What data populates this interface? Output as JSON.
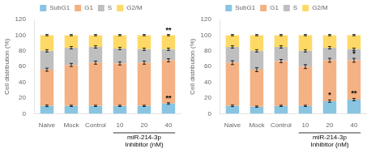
{
  "chart_data": [
    {
      "type": "bar",
      "stacked": true,
      "categories": [
        "Naive",
        "Mock",
        "Control",
        "10",
        "20",
        "40"
      ],
      "series": [
        {
          "name": "SubG1",
          "color": "#89c4e0",
          "values": [
            10,
            10,
            10,
            10,
            10,
            13
          ],
          "errors": [
            1.0,
            0.8,
            0.8,
            0.8,
            0.8,
            1.0
          ]
        },
        {
          "name": "G1",
          "color": "#f4b183",
          "values": [
            46,
            52,
            55,
            54,
            55,
            55
          ],
          "errors": [
            2.0,
            2.0,
            2.0,
            2.0,
            2.0,
            2.0
          ]
        },
        {
          "name": "S",
          "color": "#bfbfbf",
          "values": [
            24,
            22,
            20,
            19,
            17,
            14
          ],
          "errors": [
            1.5,
            1.5,
            1.5,
            1.5,
            1.5,
            1.5
          ]
        },
        {
          "name": "G2/M",
          "color": "#ffd966",
          "values": [
            20,
            16,
            15,
            17,
            18,
            18
          ],
          "errors": [
            0.8,
            0.8,
            0.8,
            0.8,
            0.8,
            0.8
          ]
        }
      ],
      "ylabel": "Cell distribution (%)",
      "ylim": [
        0,
        120
      ],
      "yticks": [
        0,
        20,
        40,
        60,
        80,
        100,
        120
      ],
      "grid": false,
      "legend": "top",
      "bracket": {
        "from": "10",
        "to": "40",
        "text": [
          "miR-214-3p",
          "Inhibitor (nM)"
        ]
      },
      "annotations": [
        {
          "text": "**",
          "category": "40",
          "series": "SubG1"
        },
        {
          "text": "**",
          "category": "40",
          "series": "G2/M"
        }
      ]
    },
    {
      "type": "bar",
      "stacked": true,
      "categories": [
        "Naive",
        "Mock",
        "Control",
        "10",
        "20",
        "40"
      ],
      "series": [
        {
          "name": "SubG1",
          "color": "#89c4e0",
          "values": [
            10,
            9,
            10,
            10,
            16,
            18
          ],
          "errors": [
            1.0,
            0.8,
            0.8,
            0.8,
            1.5,
            1.5
          ]
        },
        {
          "name": "G1",
          "color": "#f4b183",
          "values": [
            55,
            47,
            57,
            50,
            52,
            50
          ],
          "errors": [
            2.5,
            2.5,
            2.0,
            2.5,
            2.5,
            2.5
          ]
        },
        {
          "name": "S",
          "color": "#bfbfbf",
          "values": [
            20,
            24,
            18,
            20,
            16,
            14
          ],
          "errors": [
            1.5,
            1.5,
            1.5,
            1.5,
            1.5,
            1.5
          ]
        },
        {
          "name": "G2/M",
          "color": "#ffd966",
          "values": [
            15,
            20,
            15,
            20,
            16,
            18
          ],
          "errors": [
            0.8,
            0.8,
            0.8,
            0.8,
            0.8,
            0.8
          ]
        }
      ],
      "ylabel": "Cell distribution (%)",
      "ylim": [
        0,
        120
      ],
      "yticks": [
        0,
        20,
        40,
        60,
        80,
        100,
        120
      ],
      "grid": false,
      "legend": "top",
      "bracket": {
        "from": "10",
        "to": "40",
        "text": [
          "miR-214-3p",
          "Inhibitor (nM)"
        ]
      },
      "annotations": [
        {
          "text": "*",
          "category": "20",
          "series": "SubG1"
        },
        {
          "text": "**",
          "category": "40",
          "series": "SubG1"
        },
        {
          "text": "*",
          "category": "40",
          "series": "G1"
        }
      ]
    }
  ]
}
